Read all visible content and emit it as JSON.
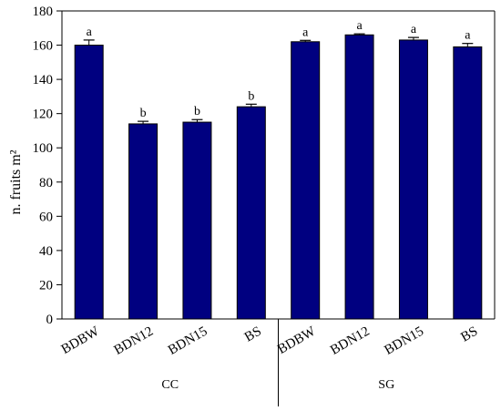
{
  "chart_data": {
    "type": "bar",
    "ylabel": "n. fruits m²",
    "ylim": [
      0,
      180
    ],
    "yticks": [
      0,
      20,
      40,
      60,
      80,
      100,
      120,
      140,
      160,
      180
    ],
    "bar_color": "#000080",
    "groups": [
      "CC",
      "SG"
    ],
    "categories": [
      "BDBW",
      "BDN12",
      "BDN15",
      "BS",
      "BDBW",
      "BDN12",
      "BDN15",
      "BS"
    ],
    "category_group": [
      "CC",
      "CC",
      "CC",
      "CC",
      "SG",
      "SG",
      "SG",
      "SG"
    ],
    "values": [
      160,
      114,
      115,
      124,
      162,
      166,
      163,
      159
    ],
    "errors": [
      3,
      1.5,
      1.5,
      1.5,
      0.8,
      0.6,
      1.5,
      2
    ],
    "significance": [
      "a",
      "b",
      "b",
      "b",
      "a",
      "a",
      "a",
      "a"
    ]
  }
}
